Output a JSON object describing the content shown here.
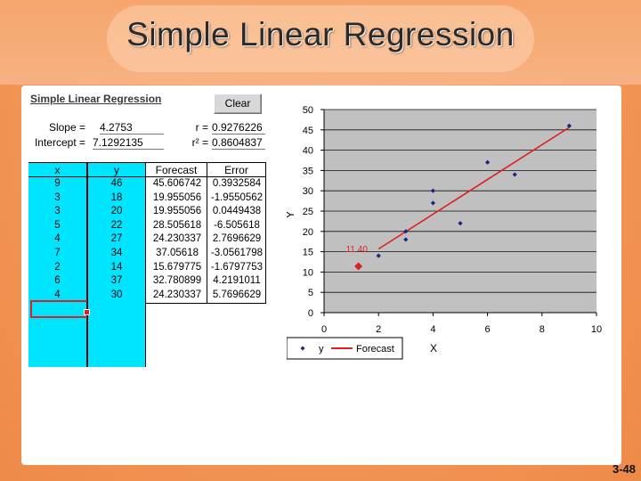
{
  "slide": {
    "title": "Simple Linear Regression",
    "number": "3-48"
  },
  "sheet": {
    "title": "Simple Linear Regression",
    "clear_label": "Clear",
    "slope_label": "Slope =",
    "slope_value": "4.2753",
    "intercept_label": "Intercept =",
    "intercept_value": "7.1292135",
    "r_label": "r =",
    "r_value": "0.9276226",
    "r2_label": "r² =",
    "r2_value": "0.8604837",
    "columns": {
      "x": "x",
      "y": "y",
      "forecast": "Forecast",
      "error": "Error"
    },
    "rows": [
      {
        "x": "9",
        "y": "46",
        "forecast": "45.606742",
        "error": "0.3932584"
      },
      {
        "x": "3",
        "y": "18",
        "forecast": "19.955056",
        "error": "-1.9550562"
      },
      {
        "x": "3",
        "y": "20",
        "forecast": "19.955056",
        "error": "0.0449438"
      },
      {
        "x": "5",
        "y": "22",
        "forecast": "28.505618",
        "error": "-6.505618"
      },
      {
        "x": "4",
        "y": "27",
        "forecast": "24.230337",
        "error": "2.7696629"
      },
      {
        "x": "7",
        "y": "34",
        "forecast": "37.05618",
        "error": "-3.0561798"
      },
      {
        "x": "2",
        "y": "14",
        "forecast": "15.679775",
        "error": "-1.6797753"
      },
      {
        "x": "6",
        "y": "37",
        "forecast": "32.780899",
        "error": "4.2191011"
      },
      {
        "x": "4",
        "y": "30",
        "forecast": "24.230337",
        "error": "5.7696629"
      }
    ]
  },
  "chart_data": {
    "type": "scatter",
    "title": "",
    "xlabel": "X",
    "ylabel": "Y",
    "xlim": [
      0,
      10
    ],
    "ylim": [
      0,
      50
    ],
    "x_ticks": [
      "0",
      "2",
      "4",
      "6",
      "8",
      "10"
    ],
    "y_ticks": [
      "0",
      "5",
      "10",
      "15",
      "20",
      "25",
      "30",
      "35",
      "40",
      "45",
      "50"
    ],
    "series": [
      {
        "name": "y",
        "color": "#1a237e",
        "points": [
          [
            9,
            46
          ],
          [
            3,
            18
          ],
          [
            3,
            20
          ],
          [
            5,
            22
          ],
          [
            4,
            27
          ],
          [
            7,
            34
          ],
          [
            2,
            14
          ],
          [
            6,
            37
          ],
          [
            4,
            30
          ]
        ]
      },
      {
        "name": "Forecast",
        "color": "#e02020",
        "line": [
          [
            2,
            15.679775
          ],
          [
            9,
            45.606742
          ]
        ]
      }
    ],
    "annotation": {
      "label": "11.40",
      "x": 1,
      "y": 11.4,
      "color": "#e02020"
    },
    "legend": "bottom",
    "plot_bg": "#c0c0c0"
  }
}
